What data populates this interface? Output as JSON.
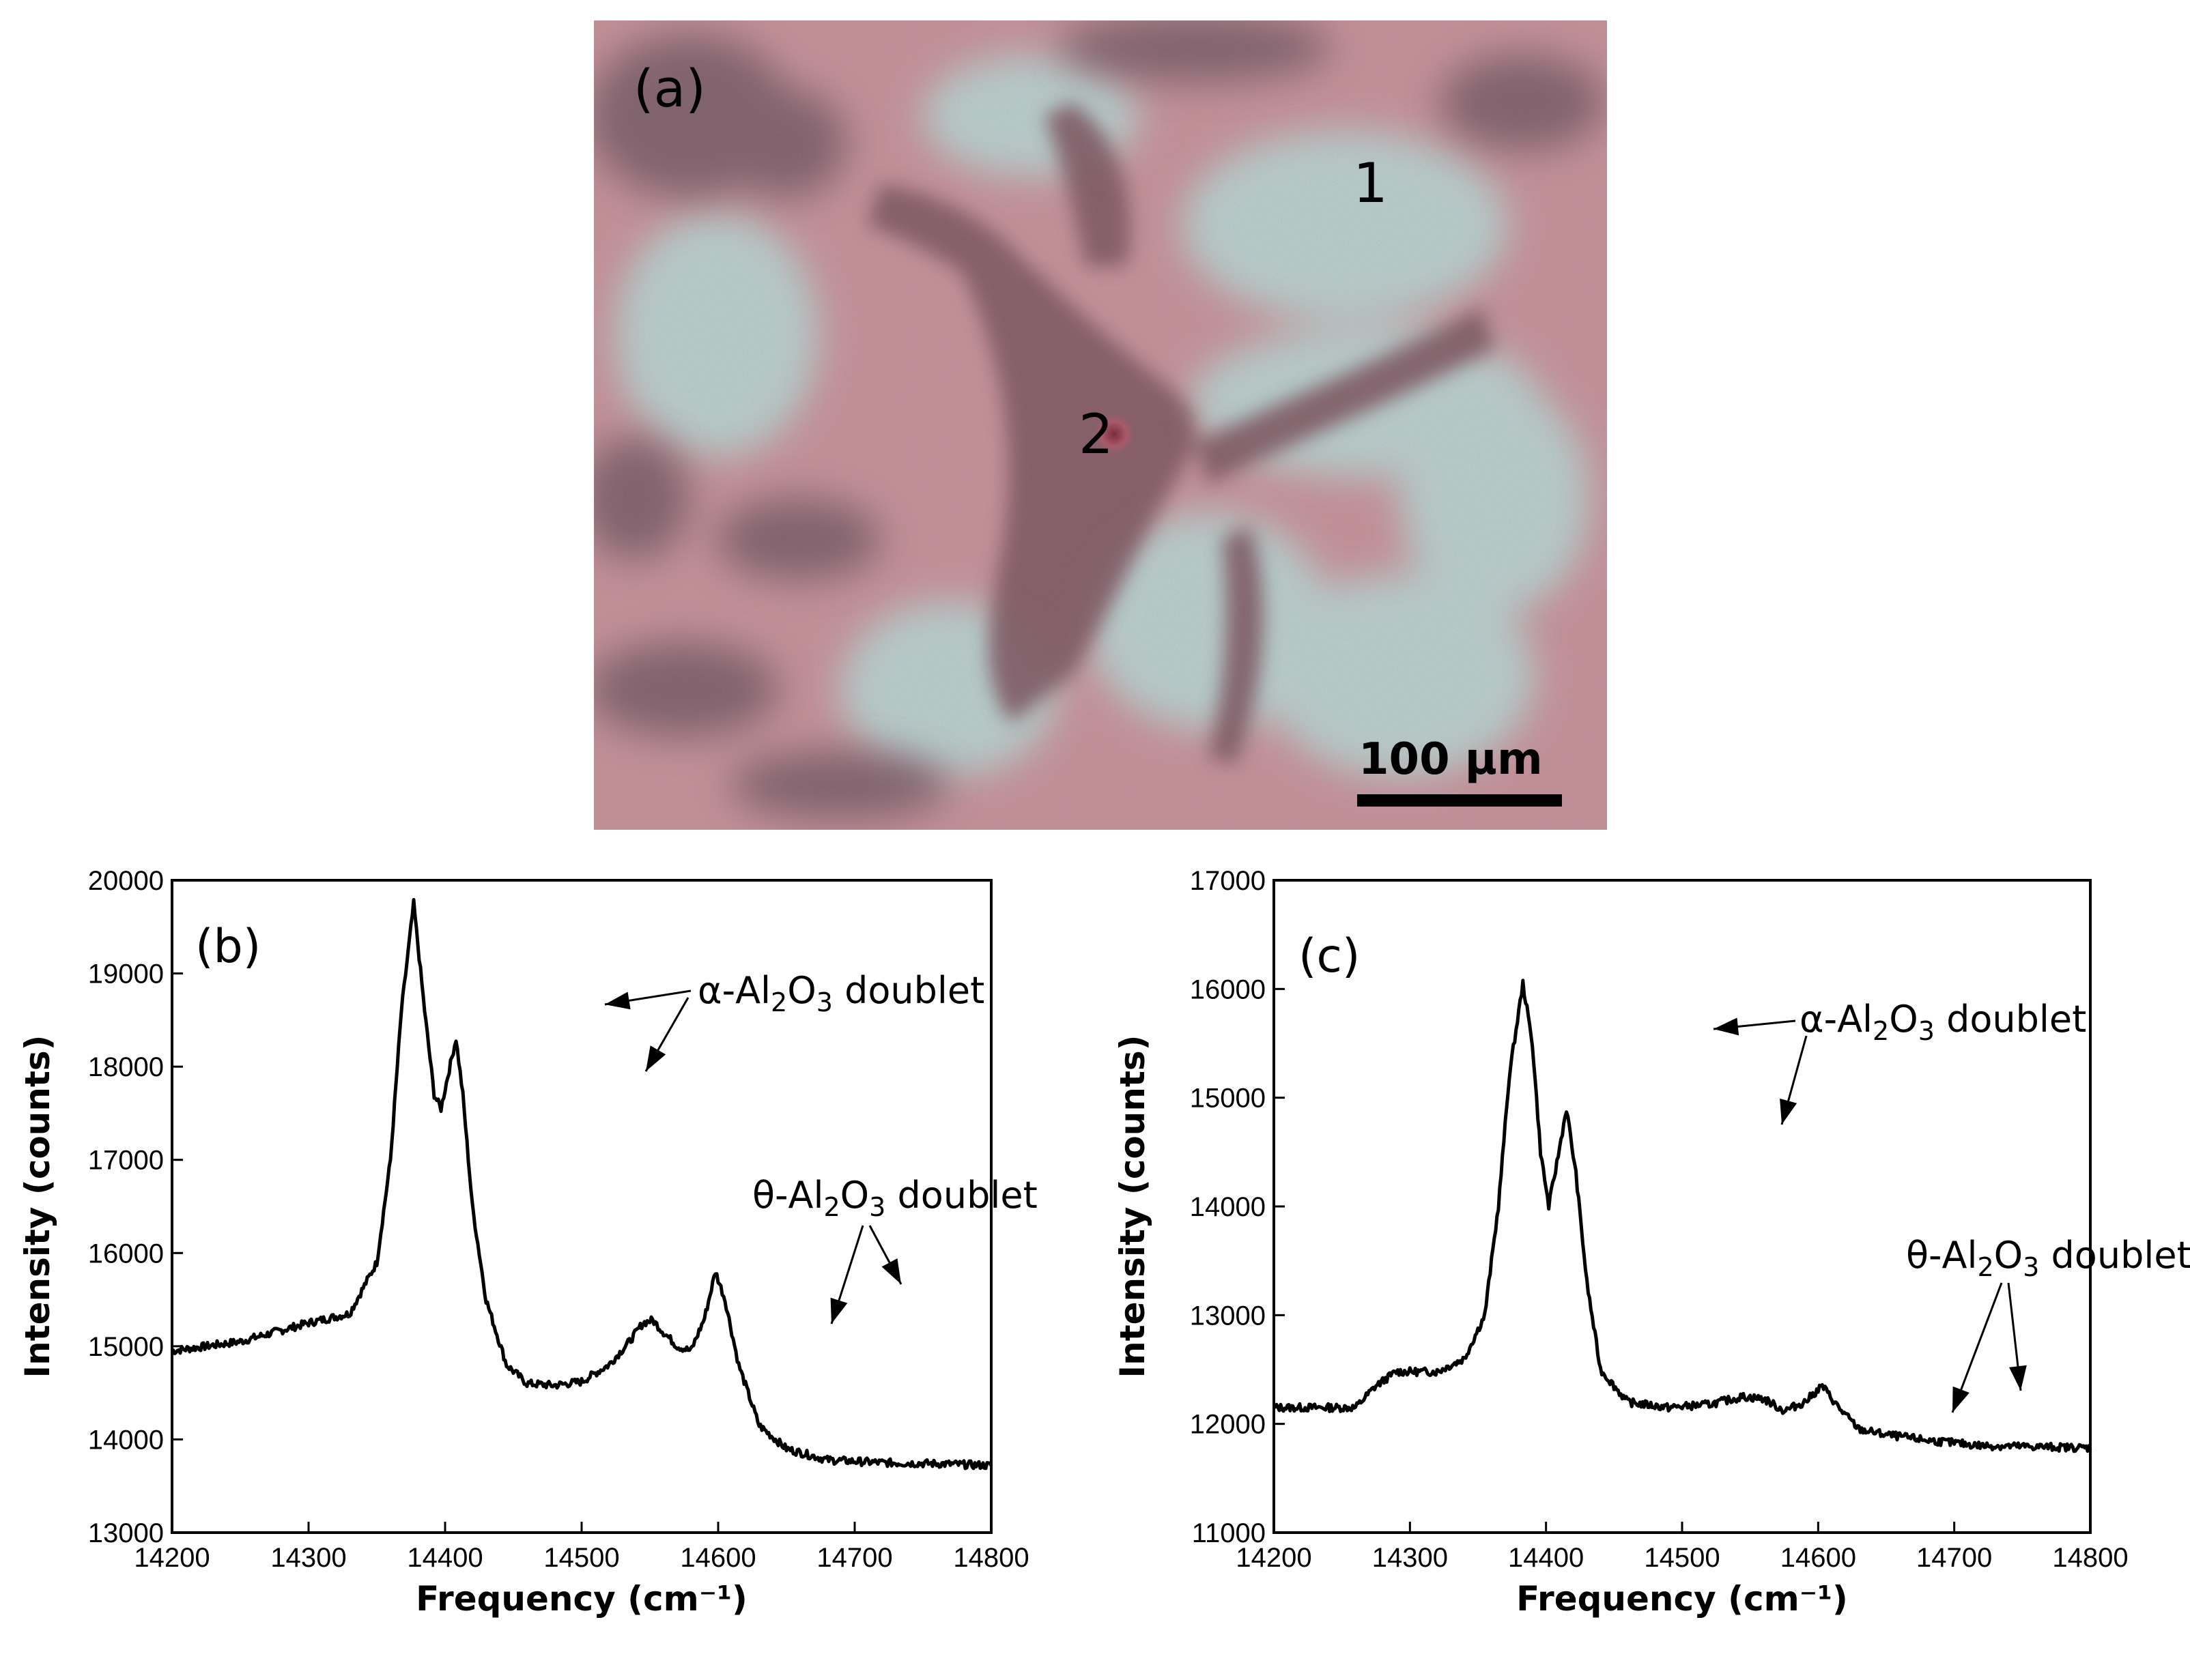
{
  "micrograph": {
    "panel_label": "(a)",
    "spot_1": "1",
    "spot_2": "2",
    "scale_bar": "100 µm"
  },
  "chart_data": [
    {
      "type": "line",
      "panel_label": "(b)",
      "xlabel": "Frequency (cm⁻¹)",
      "ylabel": "Intensity (counts)",
      "xlim": [
        14200,
        14800
      ],
      "ylim": [
        13000,
        20000
      ],
      "xticks": [
        14200,
        14300,
        14400,
        14500,
        14600,
        14700,
        14800
      ],
      "yticks": [
        13000,
        14000,
        15000,
        16000,
        17000,
        18000,
        19000,
        20000
      ],
      "color": "#000000",
      "x": [
        14200,
        14250,
        14300,
        14330,
        14350,
        14360,
        14368,
        14377,
        14385,
        14392,
        14397,
        14402,
        14408,
        14413,
        14420,
        14430,
        14445,
        14460,
        14480,
        14500,
        14520,
        14535,
        14545,
        14552,
        14560,
        14570,
        14580,
        14590,
        14598,
        14605,
        14615,
        14630,
        14650,
        14680,
        14720,
        14760,
        14800
      ],
      "values": [
        14950,
        15050,
        15250,
        15350,
        15900,
        17000,
        18600,
        19750,
        18600,
        17700,
        17550,
        17900,
        18300,
        17700,
        16500,
        15500,
        14800,
        14600,
        14580,
        14620,
        14800,
        15050,
        15250,
        15280,
        15150,
        15000,
        14950,
        15300,
        15800,
        15500,
        14800,
        14150,
        13900,
        13780,
        13750,
        13740,
        13720
      ],
      "annotations": [
        {
          "label_parts": [
            "α-Al",
            "2",
            "O",
            "3",
            " doublet"
          ]
        },
        {
          "label_parts": [
            "θ-Al",
            "2",
            "O",
            "3",
            " doublet"
          ]
        }
      ]
    },
    {
      "type": "line",
      "panel_label": "(c)",
      "xlabel": "Frequency (cm⁻¹)",
      "ylabel": "Intensity (counts)",
      "xlim": [
        14200,
        14800
      ],
      "ylim": [
        11000,
        17000
      ],
      "xticks": [
        14200,
        14300,
        14400,
        14500,
        14600,
        14700,
        14800
      ],
      "yticks": [
        11000,
        12000,
        13000,
        14000,
        15000,
        16000,
        17000
      ],
      "color": "#000000",
      "x": [
        14200,
        14230,
        14260,
        14275,
        14290,
        14320,
        14340,
        14355,
        14365,
        14373,
        14383,
        14390,
        14396,
        14402,
        14408,
        14415,
        14422,
        14430,
        14440,
        14460,
        14490,
        14520,
        14545,
        14560,
        14575,
        14590,
        14603,
        14615,
        14630,
        14650,
        14680,
        14720,
        14760,
        14800
      ],
      "values": [
        12150,
        12150,
        12150,
        12350,
        12480,
        12480,
        12600,
        13000,
        14000,
        15200,
        16050,
        15500,
        14500,
        14000,
        14400,
        14900,
        14300,
        13300,
        12500,
        12200,
        12150,
        12180,
        12250,
        12230,
        12120,
        12200,
        12350,
        12150,
        11950,
        11900,
        11850,
        11800,
        11790,
        11780
      ],
      "annotations": [
        {
          "label_parts": [
            "α-Al",
            "2",
            "O",
            "3",
            " doublet"
          ]
        },
        {
          "label_parts": [
            "θ-Al",
            "2",
            "O",
            "3",
            " doublet"
          ]
        }
      ]
    }
  ]
}
